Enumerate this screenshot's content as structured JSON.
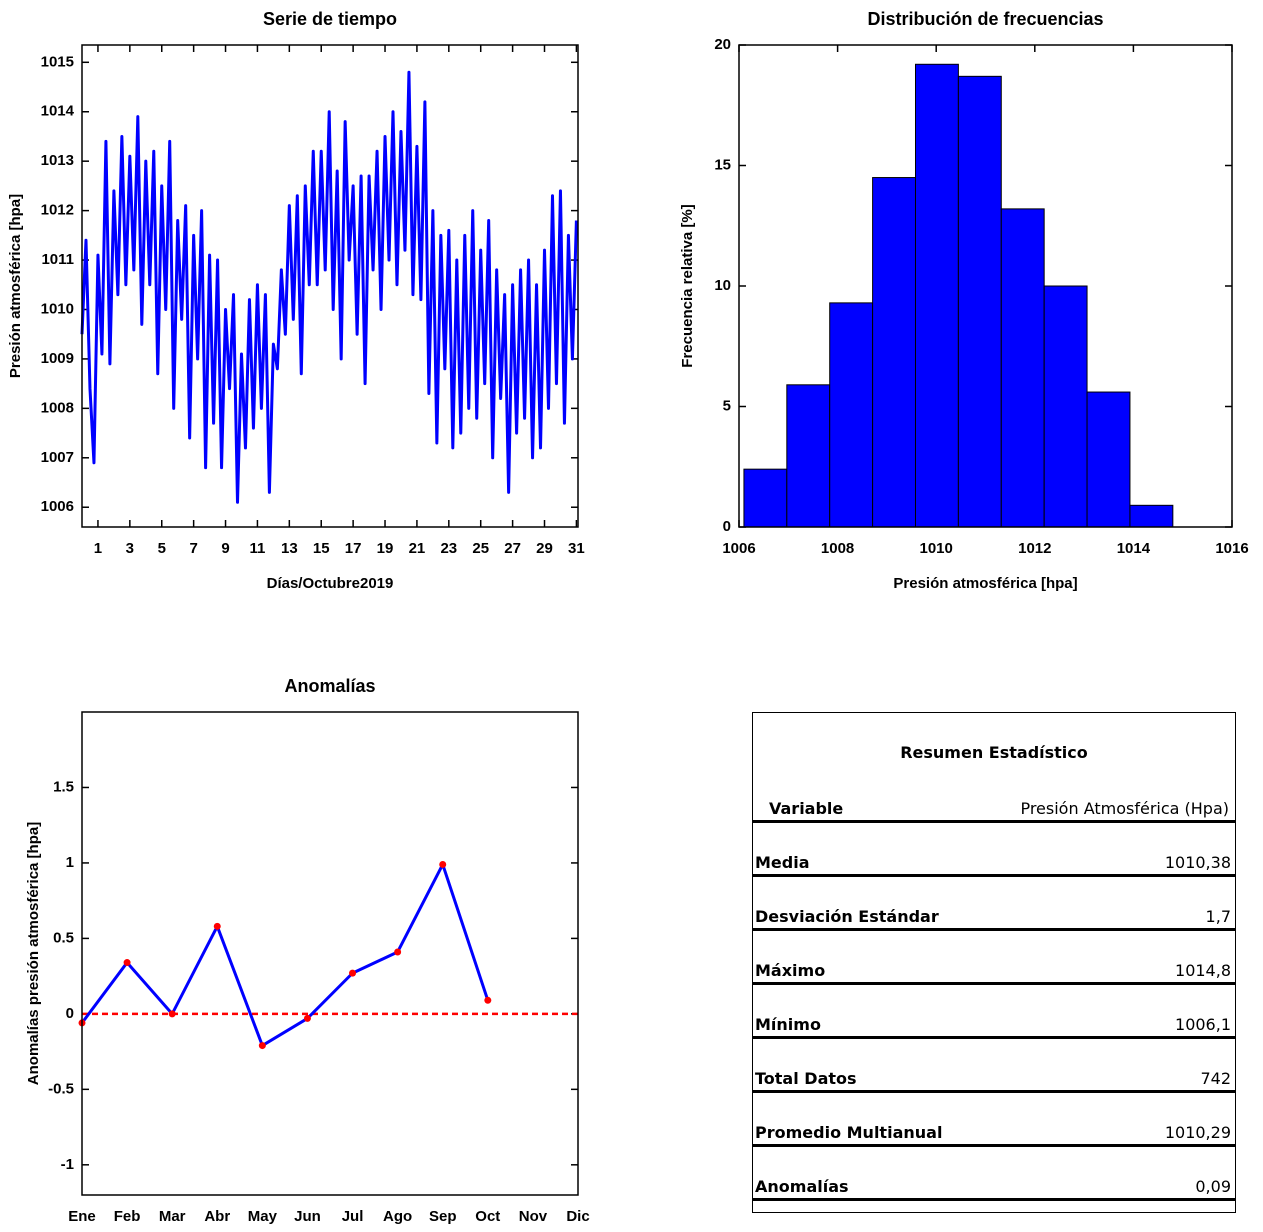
{
  "chart_data": [
    {
      "type": "line",
      "title": "Serie de tiempo",
      "xlabel": "Días/Octubre2019",
      "ylabel": "Presión atmosférica [hpa]",
      "color": "#0000ff",
      "x": [
        0,
        0.25,
        0.5,
        0.75,
        1,
        1.25,
        1.5,
        1.75,
        2,
        2.25,
        2.5,
        2.75,
        3,
        3.25,
        3.5,
        3.75,
        4,
        4.25,
        4.5,
        4.75,
        5,
        5.25,
        5.5,
        5.75,
        6,
        6.25,
        6.5,
        6.75,
        7,
        7.25,
        7.5,
        7.75,
        8,
        8.25,
        8.5,
        8.75,
        9,
        9.25,
        9.5,
        9.75,
        10,
        10.25,
        10.5,
        10.75,
        11,
        11.25,
        11.5,
        11.75,
        12,
        12.25,
        12.5,
        12.75,
        13,
        13.25,
        13.5,
        13.75,
        14,
        14.25,
        14.5,
        14.75,
        15,
        15.25,
        15.5,
        15.75,
        16,
        16.25,
        16.5,
        16.75,
        17,
        17.25,
        17.5,
        17.75,
        18,
        18.25,
        18.5,
        18.75,
        19,
        19.25,
        19.5,
        19.75,
        20,
        20.25,
        20.5,
        20.75,
        21,
        21.25,
        21.5,
        21.75,
        22,
        22.25,
        22.5,
        22.75,
        23,
        23.25,
        23.5,
        23.75,
        24,
        24.25,
        24.5,
        24.75,
        25,
        25.25,
        25.5,
        25.75,
        26,
        26.25,
        26.5,
        26.75,
        27,
        27.25,
        27.5,
        27.75,
        28,
        28.25,
        28.5,
        28.75,
        29,
        29.25,
        29.5,
        29.75,
        30,
        30.25,
        30.5,
        30.75,
        31
      ],
      "values": [
        1009.5,
        1011.4,
        1008.4,
        1006.9,
        1011.1,
        1009.1,
        1013.4,
        1008.9,
        1012.4,
        1010.3,
        1013.5,
        1010.5,
        1013.1,
        1010.8,
        1013.9,
        1009.7,
        1013.0,
        1010.5,
        1013.2,
        1008.7,
        1012.5,
        1010.0,
        1013.4,
        1008.0,
        1011.8,
        1009.8,
        1012.1,
        1007.4,
        1011.5,
        1009.0,
        1012.0,
        1006.8,
        1011.1,
        1007.7,
        1011.0,
        1006.8,
        1010.0,
        1008.4,
        1010.3,
        1006.1,
        1009.1,
        1007.2,
        1010.2,
        1007.6,
        1010.5,
        1008.0,
        1010.3,
        1006.3,
        1009.3,
        1008.8,
        1010.8,
        1009.5,
        1012.1,
        1009.8,
        1012.3,
        1008.7,
        1012.5,
        1010.5,
        1013.2,
        1010.5,
        1013.2,
        1010.8,
        1014.0,
        1010.0,
        1012.8,
        1009.0,
        1013.8,
        1011.0,
        1012.5,
        1009.5,
        1012.7,
        1008.5,
        1012.7,
        1010.8,
        1013.2,
        1010.0,
        1013.5,
        1011.0,
        1014.0,
        1010.5,
        1013.6,
        1011.2,
        1014.8,
        1010.3,
        1013.3,
        1010.2,
        1014.2,
        1008.3,
        1012.0,
        1007.3,
        1011.5,
        1008.8,
        1011.6,
        1007.2,
        1011.0,
        1007.5,
        1011.5,
        1008.0,
        1012.0,
        1007.8,
        1011.2,
        1008.5,
        1011.8,
        1007.0,
        1010.8,
        1008.2,
        1010.3,
        1006.3,
        1010.5,
        1007.5,
        1010.8,
        1007.8,
        1011.0,
        1007.0,
        1010.5,
        1007.2,
        1011.2,
        1008.0,
        1012.3,
        1008.5,
        1012.4,
        1007.7,
        1011.5,
        1009.0,
        1011.8
      ],
      "xlim": [
        0,
        31.1
      ],
      "ylim": [
        1005.6,
        1015.35
      ],
      "xticks": [
        1,
        3,
        5,
        7,
        9,
        11,
        13,
        15,
        17,
        19,
        21,
        23,
        25,
        27,
        29,
        31
      ],
      "yticks": [
        1006,
        1007,
        1008,
        1009,
        1010,
        1011,
        1012,
        1013,
        1014,
        1015
      ]
    },
    {
      "type": "histogram",
      "title": "Distribución de frecuencias",
      "xlabel": "Presión atmosférica [hpa]",
      "ylabel": "Frecuencia relativa [%]",
      "color": "#0000ff",
      "bins": [
        1006.1,
        1006.97,
        1007.84,
        1008.71,
        1009.58,
        1010.45,
        1011.32,
        1012.19,
        1013.06,
        1013.93,
        1014.8
      ],
      "values": [
        2.4,
        5.9,
        9.3,
        14.5,
        19.2,
        18.7,
        13.2,
        10.0,
        5.6,
        0.9
      ],
      "xlim": [
        1006,
        1016
      ],
      "ylim": [
        0,
        20
      ],
      "xticks": [
        1006,
        1008,
        1010,
        1012,
        1014,
        1016
      ],
      "yticks": [
        0,
        5,
        10,
        15,
        20
      ]
    },
    {
      "type": "line",
      "title": "Anomalías",
      "ylabel": "Anomalías presión atmosférica [hpa]",
      "color": "#0000ff",
      "marker_color": "#ff0000",
      "categories": [
        "Ene",
        "Feb",
        "Mar",
        "Abr",
        "May",
        "Jun",
        "Jul",
        "Ago",
        "Sep",
        "Oct",
        "Nov",
        "Dic"
      ],
      "values": [
        -0.06,
        0.34,
        0.0,
        0.58,
        -0.21,
        -0.03,
        0.27,
        0.41,
        0.99,
        0.09,
        null,
        null
      ],
      "reference_line": {
        "value": 0,
        "color": "#ff0000"
      },
      "ylim": [
        -1.2,
        2
      ],
      "yticks": [
        -1,
        -0.5,
        0,
        0.5,
        1,
        1.5
      ]
    }
  ],
  "table": {
    "title": "Resumen Estadístico",
    "header": [
      "Variable",
      "Presión Atmosférica (Hpa)"
    ],
    "rows": [
      [
        "Media",
        "1010,38"
      ],
      [
        "Desviación Estándar",
        "1,7"
      ],
      [
        "Máximo",
        "1014,8"
      ],
      [
        "Mínimo",
        "1006,1"
      ],
      [
        "Total Datos",
        "742"
      ],
      [
        "Promedio Multianual",
        "1010,29"
      ],
      [
        "Anomalías",
        "0,09"
      ]
    ]
  }
}
